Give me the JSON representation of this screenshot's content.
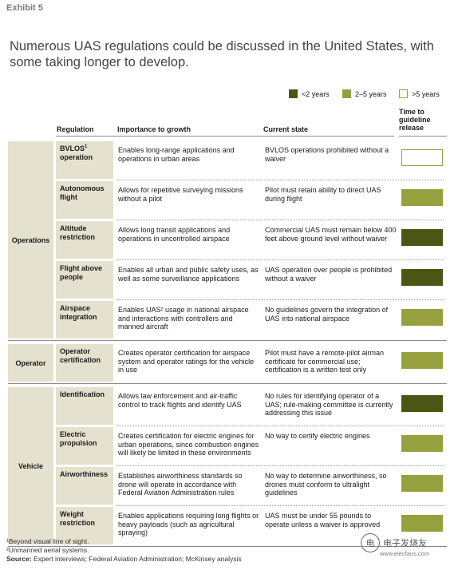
{
  "exhibit": "Exhibit 5",
  "title": "Numerous UAS regulations could be discussed in the United States, with some taking longer to develop.",
  "legend": [
    {
      "label": "<2 years",
      "color": "#4a5613",
      "outline": false
    },
    {
      "label": "2–5 years",
      "color": "#97a03f",
      "outline": false
    },
    {
      "label": ">5 years",
      "color": "#ffffff",
      "outline": true
    }
  ],
  "headers": {
    "regulation": "Regulation",
    "importance": "Importance to growth",
    "current": "Current state",
    "time": "Time to guideline release"
  },
  "groups": [
    {
      "name": "Operations",
      "rows": [
        {
          "reg": "BVLOS",
          "sup": "1",
          "reg2": "operation",
          "importance": "Enables long-range applications and operations in urban areas",
          "current": "BVLOS operations prohibited without a waiver",
          "time": ">5 years"
        },
        {
          "reg": "Autonomous flight",
          "sup": "",
          "reg2": "",
          "importance": "Allows for repetitive surveying missions without a pilot",
          "current": "Pilot must retain ability to direct UAS during flight",
          "time": "2–5 years"
        },
        {
          "reg": "Altitude restriction",
          "sup": "",
          "reg2": "",
          "importance": "Allows long transit applications and operations in uncontrolled airspace",
          "current": "Commercial UAS must remain below 400 feet above ground level without waiver",
          "time": "<2 years"
        },
        {
          "reg": "Flight above people",
          "sup": "",
          "reg2": "",
          "importance": "Enables all urban and public safety uses, as well as some surveillance applications",
          "current": "UAS operation over people is prohibited without a waiver",
          "time": "<2 years"
        },
        {
          "reg": "Airspace integration",
          "sup": "",
          "reg2": "",
          "importance": "Enables UAS² usage in national airspace and interactions with controllers and manned aircraft",
          "current": "No guidelines govern the integration of UAS into national airspace",
          "time": "2–5 years"
        }
      ]
    },
    {
      "name": "Operator",
      "rows": [
        {
          "reg": "Operator certification",
          "sup": "",
          "reg2": "",
          "importance": "Creates operator certification for airspace system and operator ratings for the vehicle in use",
          "current": "Pilot must have a remote-pilot airman certificate for commercial use; certification is a written test only",
          "time": "2–5 years"
        }
      ]
    },
    {
      "name": "Vehicle",
      "rows": [
        {
          "reg": "Identification",
          "sup": "",
          "reg2": "",
          "importance": "Allows law enforcement and air-traffic control to track flights and identify UAS",
          "current": "No rules for identifying operator of a UAS; rule-making committee is currently addressing this issue",
          "time": "<2 years"
        },
        {
          "reg": "Electric propulsion",
          "sup": "",
          "reg2": "",
          "importance": "Creates certification for electric engines for urban operations, since combustion engines will likely be limited in these environments",
          "current": "No way to certify electric engines",
          "time": "2–5 years"
        },
        {
          "reg": "Airworthiness",
          "sup": "",
          "reg2": "",
          "importance": "Establishes airworthiness standards so drone will operate in accordance with Federal Aviation Administration rules",
          "current": "No way to determine airworthiness, so drones must conform to ultralight guidelines",
          "time": "2–5 years"
        },
        {
          "reg": "Weight restriction",
          "sup": "",
          "reg2": "",
          "importance": "Enables applications requiring long flights or heavy payloads (such as agricultural spraying)",
          "current": "UAS must be under 55 pounds to operate unless a waiver is approved",
          "time": "2–5 years"
        }
      ]
    }
  ],
  "footnotes": {
    "f1": "¹Beyond visual line of sight.",
    "f2": "²Unmanned aerial systems.",
    "source_label": "Source:",
    "source_text": "Expert interviews; Federal Aviation Administration; McKinsey analysis"
  },
  "watermark": {
    "logo": "电",
    "main": "电子发烧友",
    "sub": "www.elecfans.com"
  }
}
